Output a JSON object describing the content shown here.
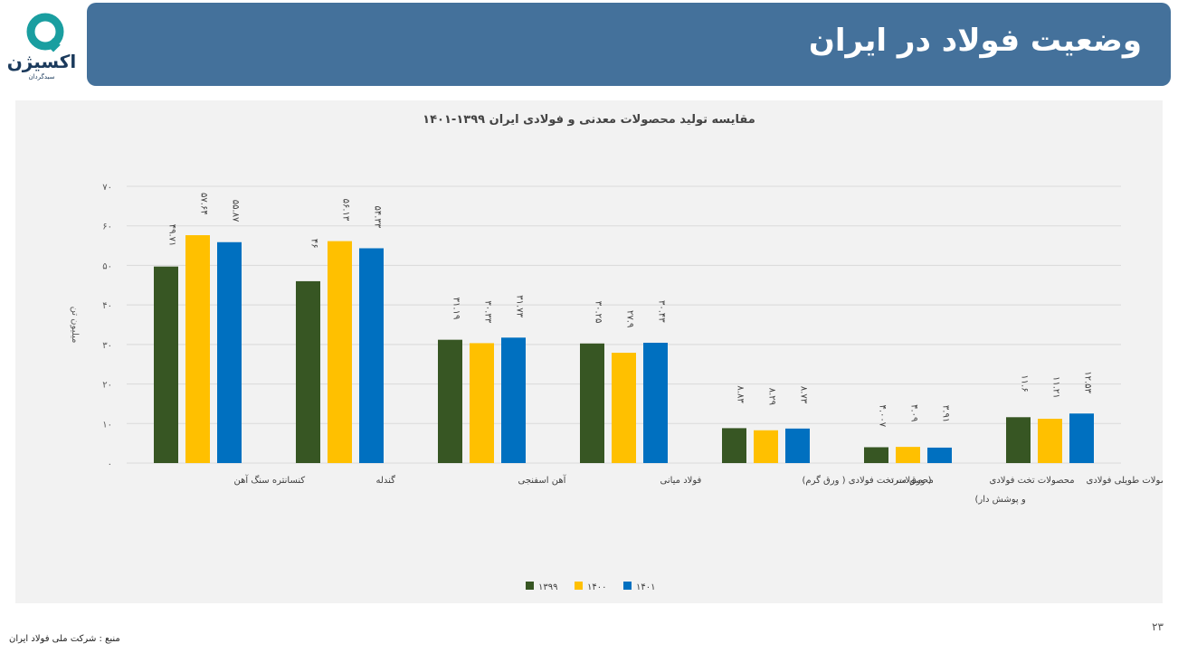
{
  "header": {
    "title": "وضعیت فولاد در ایران",
    "logo_text": "اکسیژن",
    "logo_subtext": "سبدگردان"
  },
  "footer": {
    "page_number": "۲۳",
    "source": "منبع : شرکت ملی فولاد ایران"
  },
  "colors": {
    "banner": "#44719b",
    "logo_teal": "#1a9ea0",
    "logo_navy": "#1b3a5c"
  },
  "chart_data": {
    "type": "bar",
    "title": "مقایسه تولید محصولات معدنی و فولادی ایران ۱۳۹۹-۱۴۰۱",
    "ylabel": "میلیون تن",
    "xlabel": "",
    "ylim": [
      0,
      70
    ],
    "yticks": [
      0,
      10,
      20,
      30,
      40,
      50,
      60,
      70
    ],
    "ytick_labels": [
      "۰",
      "۱۰",
      "۲۰",
      "۳۰",
      "۴۰",
      "۵۰",
      "۶۰",
      "۷۰"
    ],
    "grid": true,
    "legend_position": "bottom",
    "categories": [
      [
        "کنسانتره سنگ آهن"
      ],
      [
        "گندله"
      ],
      [
        "آهن اسفنجی"
      ],
      [
        "فولاد میانی"
      ],
      [
        "محصولات تخت فولادی ( ورق گرم)"
      ],
      [
        "محصولات تخت فولادی",
        "( ورق سرد",
        "و پوشش دار)"
      ],
      [
        "محصولات طویلی فولادی"
      ]
    ],
    "series": [
      {
        "name": "۱۳۹۹",
        "color": "#375623",
        "values": [
          49.71,
          46,
          31.19,
          30.25,
          8.83,
          4.007,
          11.6
        ],
        "labels": [
          "۴۹.۷۱",
          "۴۶",
          "۳۱.۱۹",
          "۳۰.۲۵",
          "۸.۸۳",
          "۴.۰۰۷",
          "۱۱.۶"
        ]
      },
      {
        "name": "۱۴۰۰",
        "color": "#ffc000",
        "values": [
          57.64,
          56.13,
          30.33,
          27.9,
          8.29,
          4.09,
          11.21
        ],
        "labels": [
          "۵۷.۶۴",
          "۵۶.۱۳",
          "۳۰.۳۳",
          "۲۷.۹",
          "۸.۲۹",
          "۴.۰۹",
          "۱۱.۲۱"
        ]
      },
      {
        "name": "۱۴۰۱",
        "color": "#0070c0",
        "values": [
          55.87,
          54.33,
          31.73,
          30.43,
          8.73,
          3.91,
          12.53
        ],
        "labels": [
          "۵۵.۸۷",
          "۵۴.۳۳",
          "۳۱.۷۳",
          "۳۰.۴۳",
          "۸.۷۳",
          "۳.۹۱",
          "۱۲.۵۳"
        ]
      }
    ]
  }
}
